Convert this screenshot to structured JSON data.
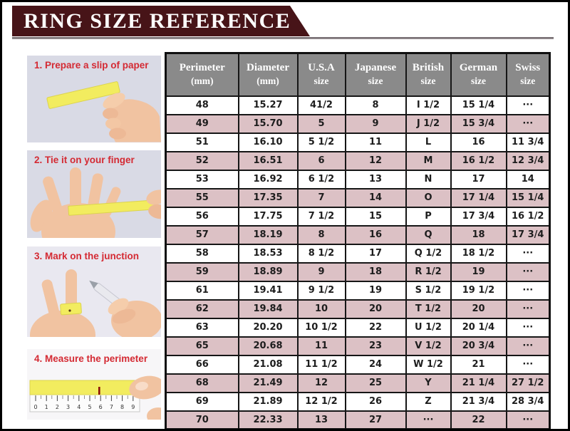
{
  "banner": {
    "title": "RING SIZE REFERENCE"
  },
  "steps": [
    {
      "label": "1. Prepare a slip of paper"
    },
    {
      "label": "2. Tie it on your finger"
    },
    {
      "label": "3. Mark on the junction"
    },
    {
      "label": "4. Measure the perimeter",
      "ruler_numbers": [
        "0",
        "1",
        "2",
        "3",
        "4",
        "5",
        "6",
        "7",
        "8",
        "9"
      ]
    }
  ],
  "chart_data": {
    "type": "table",
    "title": "RING SIZE REFERENCE",
    "columns": [
      {
        "line1": "Perimeter",
        "line2": "(mm)"
      },
      {
        "line1": "Diameter",
        "line2": "(mm)"
      },
      {
        "line1": "U.S.A",
        "line2": "size"
      },
      {
        "line1": "Japanese",
        "line2": "size"
      },
      {
        "line1": "British",
        "line2": "size"
      },
      {
        "line1": "German",
        "line2": "size"
      },
      {
        "line1": "Swiss",
        "line2": "size"
      }
    ],
    "rows": [
      [
        "48",
        "15.27",
        "41/2",
        "8",
        "I 1/2",
        "15 1/4",
        "···"
      ],
      [
        "49",
        "15.70",
        "5",
        "9",
        "J 1/2",
        "15 3/4",
        "···"
      ],
      [
        "51",
        "16.10",
        "5 1/2",
        "11",
        "L",
        "16",
        "11 3/4"
      ],
      [
        "52",
        "16.51",
        "6",
        "12",
        "M",
        "16 1/2",
        "12 3/4"
      ],
      [
        "53",
        "16.92",
        "6 1/2",
        "13",
        "N",
        "17",
        "14"
      ],
      [
        "55",
        "17.35",
        "7",
        "14",
        "O",
        "17 1/4",
        "15 1/4"
      ],
      [
        "56",
        "17.75",
        "7 1/2",
        "15",
        "P",
        "17 3/4",
        "16 1/2"
      ],
      [
        "57",
        "18.19",
        "8",
        "16",
        "Q",
        "18",
        "17 3/4"
      ],
      [
        "58",
        "18.53",
        "8 1/2",
        "17",
        "Q 1/2",
        "18 1/2",
        "···"
      ],
      [
        "59",
        "18.89",
        "9",
        "18",
        "R 1/2",
        "19",
        "···"
      ],
      [
        "61",
        "19.41",
        "9 1/2",
        "19",
        "S 1/2",
        "19 1/2",
        "···"
      ],
      [
        "62",
        "19.84",
        "10",
        "20",
        "T 1/2",
        "20",
        "···"
      ],
      [
        "63",
        "20.20",
        "10 1/2",
        "22",
        "U 1/2",
        "20 1/4",
        "···"
      ],
      [
        "65",
        "20.68",
        "11",
        "23",
        "V 1/2",
        "20 3/4",
        "···"
      ],
      [
        "66",
        "21.08",
        "11 1/2",
        "24",
        "W 1/2",
        "21",
        "···"
      ],
      [
        "68",
        "21.49",
        "12",
        "25",
        "Y",
        "21 1/4",
        "27 1/2"
      ],
      [
        "69",
        "21.89",
        "12 1/2",
        "26",
        "Z",
        "21 3/4",
        "28 3/4"
      ],
      [
        "70",
        "22.33",
        "13",
        "27",
        "···",
        "22",
        "···"
      ]
    ],
    "row_stripe_colors": [
      "#ffffff",
      "#dcc1c5"
    ],
    "legend_position": "none",
    "grid": true
  },
  "colors": {
    "banner_maroon": "#471418",
    "banner_text": "#ffffff",
    "header_gray": "#8a8a8a",
    "row_pink": "#dcc1c5",
    "row_white": "#ffffff",
    "table_border": "#161616",
    "step_label_red": "#d42a33",
    "paper_yellow": "#f2ec5f",
    "skin_tone": "#f1c3a1"
  }
}
